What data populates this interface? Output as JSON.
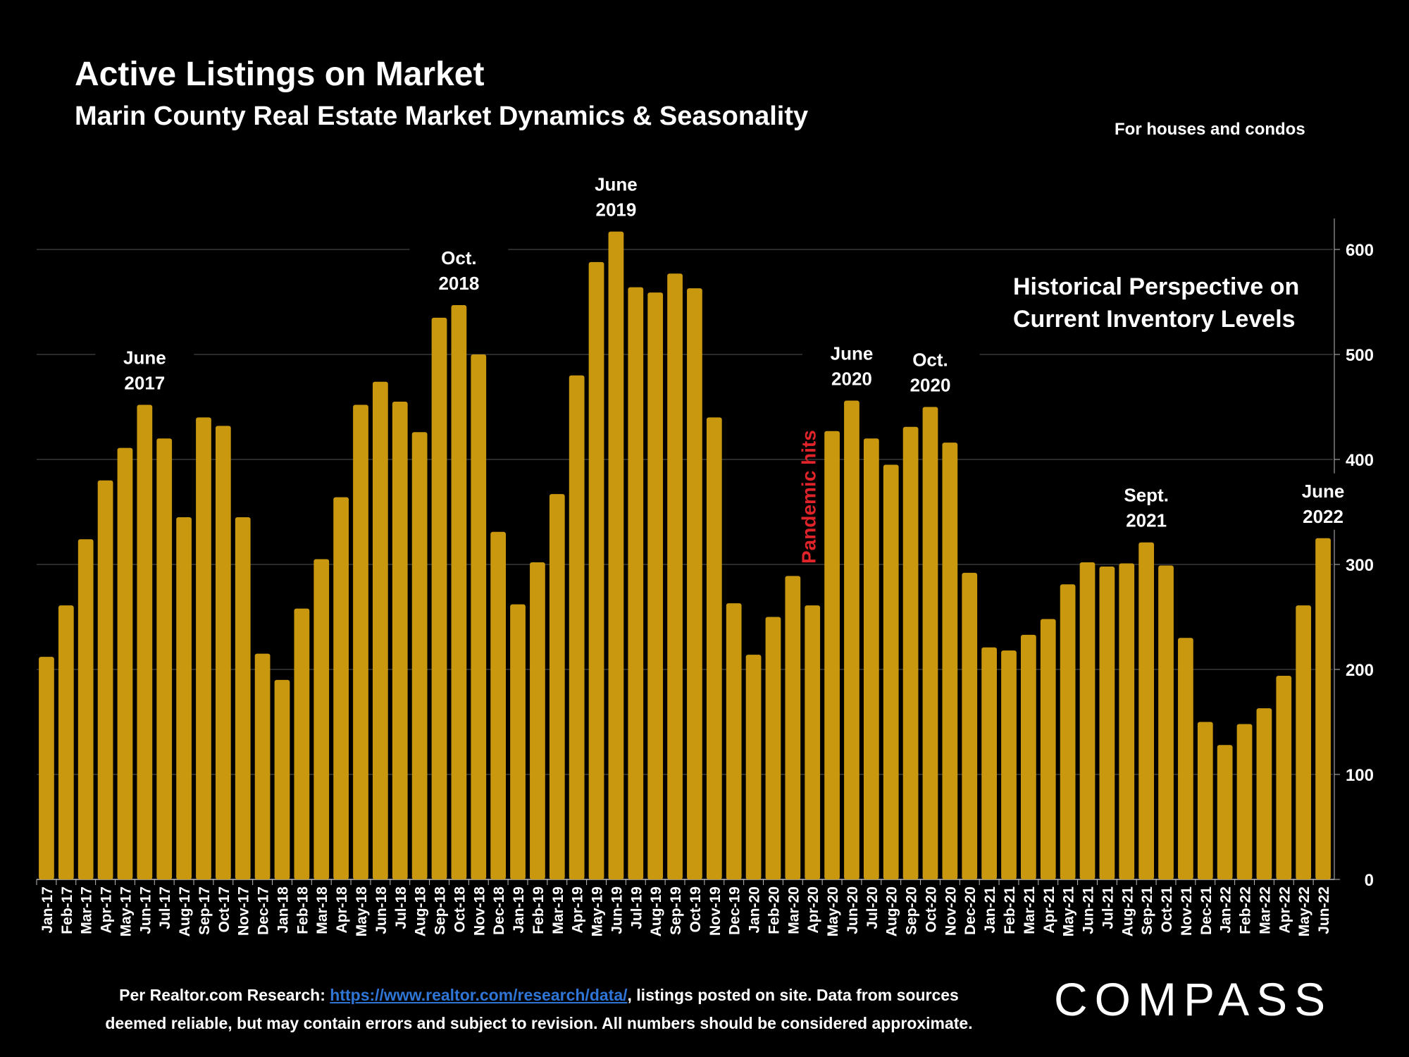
{
  "header": {
    "title": "Active Listings on Market",
    "subtitle": "Marin County Real Estate Market Dynamics & Seasonality",
    "note": "For houses and condos"
  },
  "callout": {
    "line1": "Historical Perspective on",
    "line2": "Current Inventory Levels"
  },
  "footer": {
    "prefix": "Per Realtor.com Research:",
    "link_text": "https://www.realtor.com/research/data/",
    "line1_suffix": ", listings posted on site. Data from sources",
    "line2": "deemed reliable, but may contain errors and subject to revision. All numbers should be considered approximate."
  },
  "logo": {
    "text": "COMPASS"
  },
  "colors": {
    "bar": "#C9980F",
    "grid": "#555555",
    "pandemic": "#E0242A",
    "text": "#FFFFFF",
    "background": "#000000"
  },
  "chart_data": {
    "type": "bar",
    "title": "Active Listings on Market",
    "subtitle": "Marin County Real Estate Market Dynamics & Seasonality",
    "ylim": [
      0,
      600
    ],
    "yticks": [
      0,
      100,
      200,
      300,
      400,
      500,
      600
    ],
    "y_axis_position": "right",
    "grid": true,
    "categories": [
      "Jan-17",
      "Feb-17",
      "Mar-17",
      "Apr-17",
      "May-17",
      "Jun-17",
      "Jul-17",
      "Aug-17",
      "Sep-17",
      "Oct-17",
      "Nov-17",
      "Dec-17",
      "Jan-18",
      "Feb-18",
      "Mar-18",
      "Apr-18",
      "May-18",
      "Jun-18",
      "Jul-18",
      "Aug-18",
      "Sep-18",
      "Oct-18",
      "Nov-18",
      "Dec-18",
      "Jan-19",
      "Feb-19",
      "Mar-19",
      "Apr-19",
      "May-19",
      "Jun-19",
      "Jul-19",
      "Aug-19",
      "Sep-19",
      "Oct-19",
      "Nov-19",
      "Dec-19",
      "Jan-20",
      "Feb-20",
      "Mar-20",
      "Apr-20",
      "May-20",
      "Jun-20",
      "Jul-20",
      "Aug-20",
      "Sep-20",
      "Oct-20",
      "Nov-20",
      "Dec-20",
      "Jan-21",
      "Feb-21",
      "Mar-21",
      "Apr-21",
      "May-21",
      "Jun-21",
      "Jul-21",
      "Aug-21",
      "Sep-21",
      "Oct-21",
      "Nov-21",
      "Dec-21",
      "Jan-22",
      "Feb-22",
      "Mar-22",
      "Apr-22",
      "May-22",
      "Jun-22"
    ],
    "values": [
      212,
      261,
      324,
      380,
      411,
      452,
      420,
      345,
      440,
      432,
      345,
      215,
      190,
      258,
      305,
      364,
      452,
      474,
      455,
      426,
      535,
      547,
      500,
      331,
      262,
      302,
      367,
      480,
      588,
      617,
      564,
      559,
      577,
      563,
      440,
      263,
      214,
      250,
      289,
      261,
      427,
      456,
      420,
      395,
      431,
      450,
      416,
      292,
      221,
      218,
      233,
      248,
      281,
      302,
      298,
      301,
      321,
      299,
      230,
      150,
      128,
      148,
      163,
      194,
      261,
      325
    ],
    "annotations": [
      {
        "index": 5,
        "line1": "June",
        "line2": "2017"
      },
      {
        "index": 21,
        "line1": "Oct.",
        "line2": "2018"
      },
      {
        "index": 29,
        "line1": "June",
        "line2": "2019"
      },
      {
        "index": 41,
        "line1": "June",
        "line2": "2020"
      },
      {
        "index": 45,
        "line1": "Oct.",
        "line2": "2020"
      },
      {
        "index": 56,
        "line1": "Sept.",
        "line2": "2021"
      },
      {
        "index": 65,
        "line1": "June",
        "line2": "2022"
      }
    ],
    "event_label": {
      "index": 38,
      "text": "Pandemic hits"
    }
  }
}
